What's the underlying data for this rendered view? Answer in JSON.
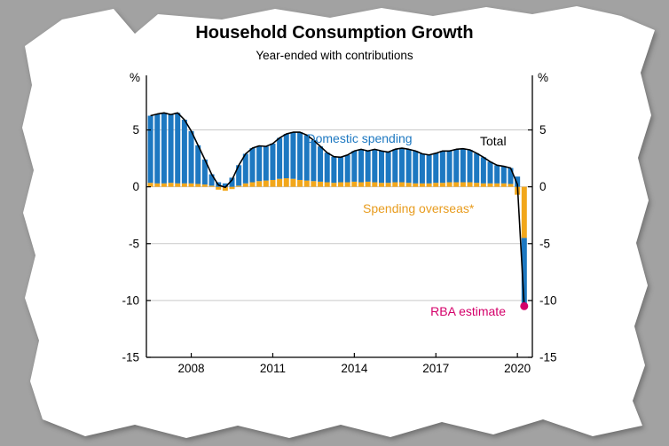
{
  "page": {
    "background": "#a2a2a2",
    "paper_color": "#ffffff"
  },
  "chart": {
    "title": "Household Consumption Growth",
    "subtitle": "Year-ended with contributions",
    "y_unit_left": "%",
    "y_unit_right": "%",
    "labels": {
      "domestic": "Domestic spending",
      "total": "Total",
      "overseas": "Spending overseas*",
      "rba": "RBA estimate"
    }
  },
  "chart_data": {
    "type": "bar",
    "stacked": true,
    "title": "Household Consumption Growth",
    "subtitle": "Year-ended with contributions",
    "ylabel": "%",
    "ylim": [
      -15,
      9.8
    ],
    "yticks": [
      5,
      0,
      -5,
      -10,
      -15
    ],
    "xticks": [
      2008,
      2011,
      2014,
      2017,
      2020
    ],
    "xlim": [
      2006.35,
      2020.55
    ],
    "grid": true,
    "categories": [
      "2006Q3",
      "2006Q4",
      "2007Q1",
      "2007Q2",
      "2007Q3",
      "2007Q4",
      "2008Q1",
      "2008Q2",
      "2008Q3",
      "2008Q4",
      "2009Q1",
      "2009Q2",
      "2009Q3",
      "2009Q4",
      "2010Q1",
      "2010Q2",
      "2010Q3",
      "2010Q4",
      "2011Q1",
      "2011Q2",
      "2011Q3",
      "2011Q4",
      "2012Q1",
      "2012Q2",
      "2012Q3",
      "2012Q4",
      "2013Q1",
      "2013Q2",
      "2013Q3",
      "2013Q4",
      "2014Q1",
      "2014Q2",
      "2014Q3",
      "2014Q4",
      "2015Q1",
      "2015Q2",
      "2015Q3",
      "2015Q4",
      "2016Q1",
      "2016Q2",
      "2016Q3",
      "2016Q4",
      "2017Q1",
      "2017Q2",
      "2017Q3",
      "2017Q4",
      "2018Q1",
      "2018Q2",
      "2018Q3",
      "2018Q4",
      "2019Q1",
      "2019Q2",
      "2019Q3",
      "2019Q4",
      "2020Q1",
      "2020Q2"
    ],
    "series": [
      {
        "name": "Domestic spending",
        "color": "#1d78c1",
        "values": [
          5.9,
          6.1,
          6.2,
          6.0,
          6.2,
          5.6,
          4.6,
          3.4,
          2.2,
          1.0,
          0.4,
          0.3,
          0.8,
          1.8,
          2.6,
          3.0,
          3.1,
          3.0,
          3.2,
          3.6,
          3.9,
          4.1,
          4.2,
          4.0,
          3.6,
          3.1,
          2.6,
          2.3,
          2.2,
          2.4,
          2.7,
          2.9,
          2.7,
          2.9,
          2.8,
          2.7,
          2.9,
          3.0,
          2.95,
          2.85,
          2.6,
          2.5,
          2.6,
          2.8,
          2.75,
          2.9,
          2.95,
          2.85,
          2.6,
          2.3,
          1.9,
          1.6,
          1.5,
          1.4,
          0.9,
          -6.0
        ]
      },
      {
        "name": "Spending overseas*",
        "color": "#f2a71b",
        "values": [
          0.35,
          0.3,
          0.3,
          0.35,
          0.3,
          0.3,
          0.3,
          0.25,
          0.2,
          0.1,
          -0.25,
          -0.35,
          -0.2,
          0.1,
          0.3,
          0.4,
          0.5,
          0.55,
          0.6,
          0.7,
          0.75,
          0.7,
          0.6,
          0.55,
          0.5,
          0.45,
          0.4,
          0.35,
          0.4,
          0.4,
          0.45,
          0.4,
          0.45,
          0.4,
          0.35,
          0.35,
          0.4,
          0.4,
          0.35,
          0.3,
          0.3,
          0.3,
          0.35,
          0.35,
          0.4,
          0.4,
          0.4,
          0.4,
          0.35,
          0.3,
          0.3,
          0.3,
          0.3,
          0.25,
          -0.7,
          -4.5
        ]
      }
    ],
    "totals": [
      6.25,
      6.4,
      6.5,
      6.35,
      6.5,
      5.9,
      4.9,
      3.65,
      2.4,
      1.1,
      0.15,
      -0.05,
      0.6,
      1.9,
      2.9,
      3.4,
      3.6,
      3.55,
      3.8,
      4.3,
      4.65,
      4.8,
      4.8,
      4.55,
      4.1,
      3.55,
      3.0,
      2.65,
      2.6,
      2.8,
      3.15,
      3.3,
      3.15,
      3.3,
      3.15,
      3.05,
      3.3,
      3.4,
      3.3,
      3.15,
      2.9,
      2.8,
      2.95,
      3.15,
      3.15,
      3.3,
      3.35,
      3.25,
      2.95,
      2.6,
      2.2,
      1.9,
      1.8,
      1.65,
      0.2,
      -10.5
    ],
    "total_line": {
      "name": "Total",
      "color": "#000000"
    },
    "annotation_point": {
      "label": "RBA estimate",
      "x": "2020Q2",
      "y": -10.5,
      "color": "#d4006a"
    },
    "colors": {
      "domestic": "#1d78c1",
      "overseas": "#f2a71b",
      "total": "#000000",
      "rba": "#d4006a",
      "grid": "#c9c9c9",
      "axis": "#000000"
    },
    "legend_position": "annotations-inline"
  }
}
